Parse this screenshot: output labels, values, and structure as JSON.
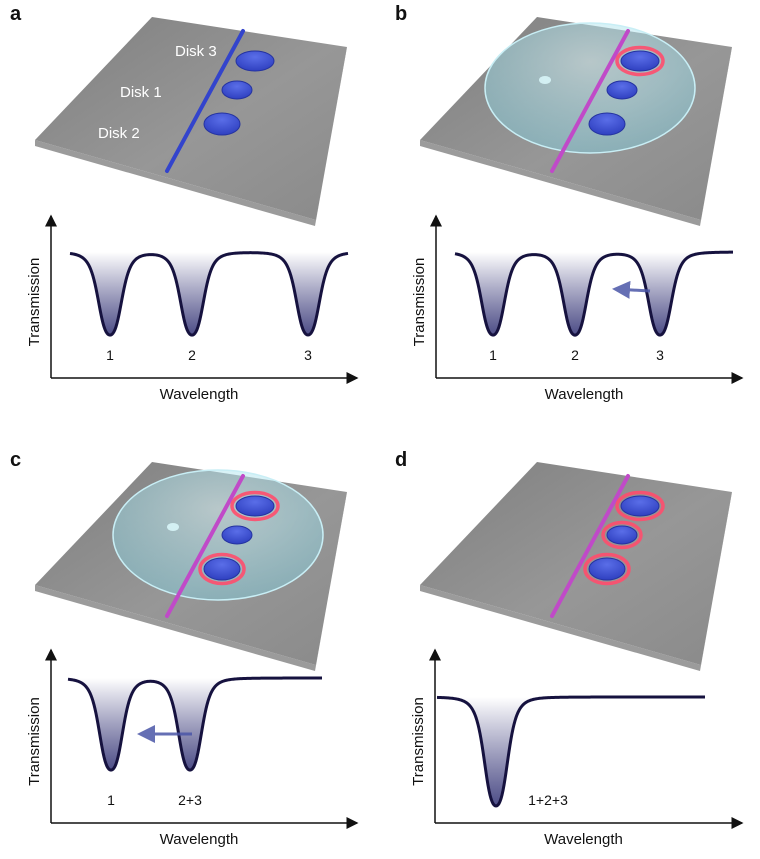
{
  "colors": {
    "chip": "#8a8a8a",
    "disk": "#3a4fd0",
    "waveguide_initial": "#3344cc",
    "waveguide_tuned": "#c04ac8",
    "ring_glow": "#ff4d6d",
    "dome": "#aee3ee",
    "curve": "#16123f",
    "arrow": "#4b56a8"
  },
  "panels": [
    {
      "label": "a",
      "disk_labels": [
        "Disk 3",
        "Disk 1",
        "Disk 2"
      ],
      "dip_labels": [
        "1",
        "2",
        "3"
      ],
      "ylabel": "Transmission",
      "xlabel": "Wavelength",
      "dome": false,
      "shift_arrow": false
    },
    {
      "label": "b",
      "dip_labels": [
        "1",
        "2",
        "3"
      ],
      "ylabel": "Transmission",
      "xlabel": "Wavelength",
      "dome": true,
      "shift_arrow": true
    },
    {
      "label": "c",
      "dip_labels": [
        "1",
        "2+3"
      ],
      "ylabel": "Transmission",
      "xlabel": "Wavelength",
      "dome": true,
      "shift_arrow": true
    },
    {
      "label": "d",
      "dip_labels": [
        "1+2+3"
      ],
      "ylabel": "Transmission",
      "xlabel": "Wavelength",
      "dome": false,
      "shift_arrow": false
    }
  ]
}
